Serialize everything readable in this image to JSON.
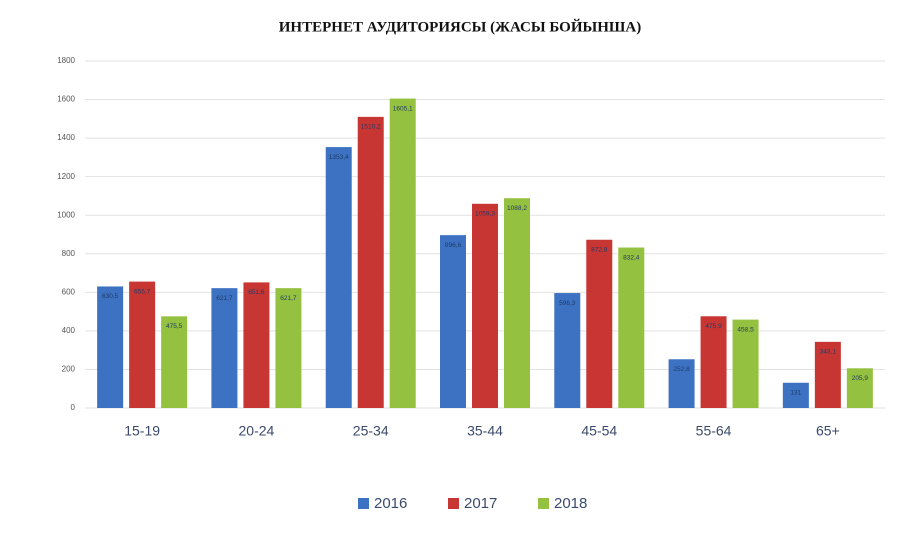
{
  "chart_data": {
    "type": "bar",
    "title": "ИНТЕРНЕТ АУДИТОРИЯСЫ (ЖАСЫ БОЙЫНША)",
    "categories": [
      "15-19",
      "20-24",
      "25-34",
      "35-44",
      "45-54",
      "55-64",
      "65+"
    ],
    "series": [
      {
        "name": "2016",
        "color": "#3d72c3",
        "values": [
          630.5,
          621.7,
          1353.4,
          896.6,
          596.3,
          252.8,
          131
        ],
        "value_labels": [
          "630,5",
          "621,7",
          "1353,4",
          "896,6",
          "596,3",
          "252,8",
          "131"
        ]
      },
      {
        "name": "2017",
        "color": "#c83634",
        "values": [
          655.7,
          651.6,
          1510.2,
          1059.3,
          872.8,
          475.9,
          343.1
        ],
        "value_labels": [
          "655,7",
          "651,6",
          "1510,2",
          "1059,3",
          "872,8",
          "475,9",
          "343,1"
        ]
      },
      {
        "name": "2018",
        "color": "#94c13f",
        "values": [
          475.5,
          621.7,
          1605.1,
          1088.2,
          832.4,
          458.5,
          205.9
        ],
        "value_labels": [
          "475,5",
          "621,7",
          "1605,1",
          "1088,2",
          "832,4",
          "458,5",
          "205,9"
        ]
      }
    ],
    "ylim": [
      0,
      1800
    ],
    "yticks": [
      0,
      200,
      400,
      600,
      800,
      1000,
      1200,
      1400,
      1600,
      1800
    ],
    "grid": true
  }
}
